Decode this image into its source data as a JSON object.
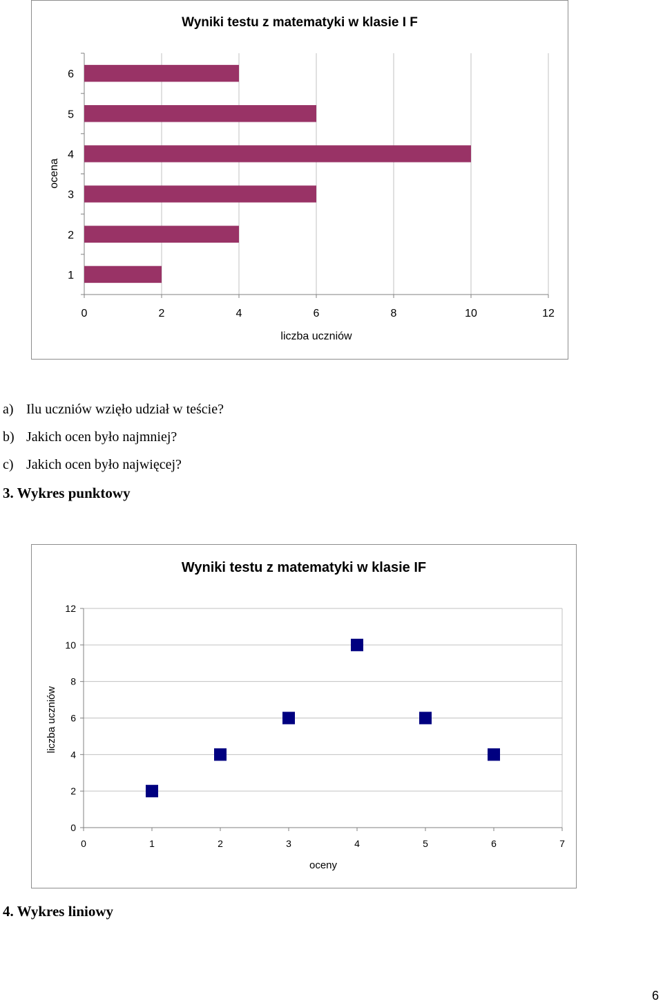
{
  "bar_chart": {
    "bar_color": "#993366"
  },
  "scatter_chart": {
    "marker_color": "#000080"
  },
  "chart_data": [
    {
      "type": "bar",
      "orientation": "horizontal",
      "title": "Wyniki testu z matematyki w klasie I F",
      "xlabel": "liczba uczniów",
      "ylabel": "ocena",
      "categories": [
        "1",
        "2",
        "3",
        "4",
        "5",
        "6"
      ],
      "values": [
        2,
        4,
        6,
        10,
        6,
        4
      ],
      "xlim": [
        0,
        12
      ],
      "x_ticks": [
        "0",
        "2",
        "4",
        "6",
        "8",
        "10",
        "12"
      ],
      "grid": "vertical",
      "legend": "none"
    },
    {
      "type": "scatter",
      "title": "Wyniki testu z matematyki w klasie IF",
      "xlabel": "oceny",
      "ylabel": "liczba uczniów",
      "x": [
        1,
        2,
        3,
        4,
        5,
        6
      ],
      "y": [
        2,
        4,
        6,
        10,
        6,
        4
      ],
      "xlim": [
        0,
        7
      ],
      "ylim": [
        0,
        12
      ],
      "x_ticks": [
        "0",
        "1",
        "2",
        "3",
        "4",
        "5",
        "6",
        "7"
      ],
      "y_ticks": [
        "0",
        "2",
        "4",
        "6",
        "8",
        "10",
        "12"
      ],
      "grid": "horizontal",
      "marker": "square",
      "legend": "none"
    }
  ],
  "questions": [
    {
      "label": "a)",
      "text": "Ilu uczniów wzięło udział w teście?"
    },
    {
      "label": "b)",
      "text": "Jakich ocen było najmniej?"
    },
    {
      "label": "c)",
      "text": "Jakich ocen było najwięcej?"
    }
  ],
  "section3_heading": "3. Wykres punktowy",
  "section4_heading": "4. Wykres liniowy",
  "page_number": "6"
}
